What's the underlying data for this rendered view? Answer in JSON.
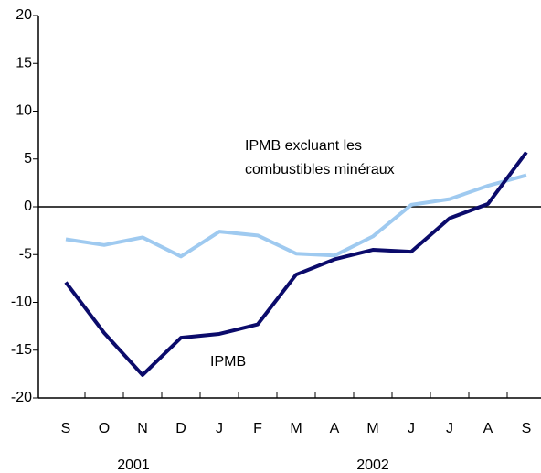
{
  "chart_data": {
    "type": "line",
    "categories": [
      "S",
      "O",
      "N",
      "D",
      "J",
      "F",
      "M",
      "A",
      "M",
      "J",
      "J",
      "A",
      "S"
    ],
    "years": [
      "2001",
      "2002"
    ],
    "series": [
      {
        "name": "IPMB",
        "color": "#0b0b6b",
        "values": [
          -7.9,
          -13.2,
          -17.6,
          -13.7,
          -13.3,
          -12.3,
          -7.1,
          -5.5,
          -4.5,
          -4.7,
          -1.2,
          0.3,
          5.7
        ]
      },
      {
        "name": "IPMB excluant les combustibles minéraux",
        "color": "#9fcaf0",
        "values": [
          -3.4,
          -4.0,
          -3.2,
          -5.2,
          -2.6,
          -3.0,
          -4.9,
          -5.1,
          -3.1,
          0.2,
          0.8,
          2.2,
          3.3
        ]
      }
    ],
    "annotations": [
      "IPMB excluant les",
      "combustibles minéraux",
      "IPMB"
    ],
    "ylim": [
      -20,
      20
    ],
    "yticks": [
      -20,
      -15,
      -10,
      -5,
      0,
      5,
      10,
      15,
      20
    ]
  }
}
